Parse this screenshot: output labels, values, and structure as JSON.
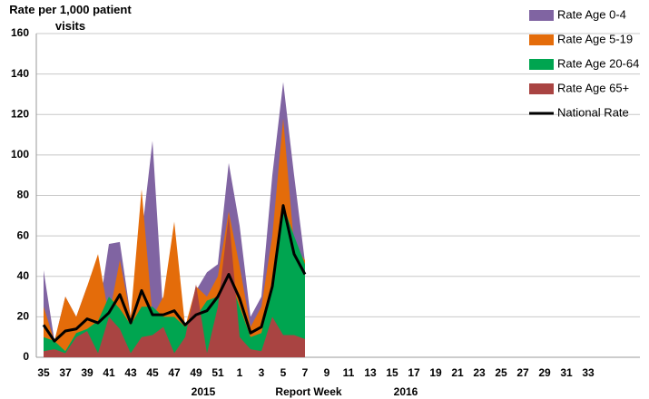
{
  "chart_data": {
    "type": "area",
    "title": "Rate per 1,000 patient visits",
    "xlabel": "Report Week",
    "year_labels": [
      "2015",
      "2016"
    ],
    "categories": [
      35,
      null,
      37,
      null,
      39,
      null,
      41,
      null,
      43,
      null,
      45,
      null,
      47,
      null,
      49,
      null,
      51,
      null,
      1,
      null,
      3,
      null,
      5,
      null,
      7,
      null,
      9,
      null,
      11,
      null,
      13,
      null,
      15,
      null,
      17,
      null,
      19,
      null,
      21,
      null,
      23,
      null,
      25,
      null,
      27,
      null,
      29,
      null,
      31,
      null,
      33,
      null
    ],
    "series": [
      {
        "name": "Rate Age 0-4",
        "color": "#8064a2",
        "style": "area",
        "values": [
          43,
          8,
          30,
          20,
          35,
          20,
          56,
          57,
          20,
          60,
          107,
          20,
          40,
          15,
          33,
          42,
          46,
          96,
          65,
          20,
          30,
          90,
          136,
          90,
          47,
          null,
          null,
          null,
          null,
          null,
          null,
          null,
          null,
          null,
          null,
          null,
          null,
          null,
          null,
          null,
          null,
          null,
          null,
          null,
          null,
          null,
          null,
          null,
          null,
          null,
          null,
          null
        ]
      },
      {
        "name": "Rate Age 5-19",
        "color": "#e46c0a",
        "style": "area",
        "values": [
          25,
          8,
          30,
          20,
          35,
          51,
          20,
          48,
          20,
          83,
          20,
          30,
          67,
          15,
          35,
          30,
          40,
          72,
          45,
          15,
          25,
          60,
          118,
          55,
          48,
          null,
          null,
          null,
          null,
          null,
          null,
          null,
          null,
          null,
          null,
          null,
          null,
          null,
          null,
          null,
          null,
          null,
          null,
          null,
          null,
          null,
          null,
          null,
          null,
          null,
          null,
          null
        ]
      },
      {
        "name": "Rate Age 20-64",
        "color": "#00a550",
        "style": "area",
        "values": [
          10,
          8,
          3,
          12,
          14,
          18,
          30,
          24,
          16,
          25,
          25,
          20,
          20,
          15,
          20,
          28,
          30,
          40,
          25,
          10,
          12,
          35,
          75,
          60,
          46,
          null,
          null,
          null,
          null,
          null,
          null,
          null,
          null,
          null,
          null,
          null,
          null,
          null,
          null,
          null,
          null,
          null,
          null,
          null,
          null,
          null,
          null,
          null,
          null,
          null,
          null,
          null
        ]
      },
      {
        "name": "Rate Age 65+",
        "color": "#a94442",
        "style": "area",
        "values": [
          3,
          4,
          2,
          10,
          13,
          2,
          20,
          14,
          2,
          10,
          11,
          15,
          2,
          10,
          36,
          2,
          25,
          70,
          10,
          4,
          3,
          20,
          11,
          11,
          9,
          null,
          null,
          null,
          null,
          null,
          null,
          null,
          null,
          null,
          null,
          null,
          null,
          null,
          null,
          null,
          null,
          null,
          null,
          null,
          null,
          null,
          null,
          null,
          null,
          null,
          null,
          null
        ]
      },
      {
        "name": "National Rate",
        "color": "#000000",
        "style": "line",
        "values": [
          16,
          8,
          13,
          14,
          19,
          17,
          22,
          31,
          17,
          33,
          21,
          21,
          23,
          16,
          21,
          23,
          30,
          41,
          29,
          12,
          15,
          35,
          75,
          51,
          41,
          null,
          null,
          null,
          null,
          null,
          null,
          null,
          null,
          null,
          null,
          null,
          null,
          null,
          null,
          null,
          null,
          null,
          null,
          null,
          null,
          null,
          null,
          null,
          null,
          null,
          null,
          null
        ]
      }
    ],
    "ylim": [
      0,
      160
    ],
    "yticks": [
      0,
      20,
      40,
      60,
      80,
      100,
      120,
      140,
      160
    ],
    "grid": true,
    "legend": "top-right"
  }
}
